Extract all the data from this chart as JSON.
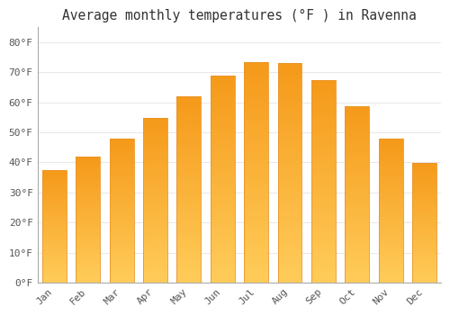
{
  "months": [
    "Jan",
    "Feb",
    "Mar",
    "Apr",
    "May",
    "Jun",
    "Jul",
    "Aug",
    "Sep",
    "Oct",
    "Nov",
    "Dec"
  ],
  "values": [
    37.4,
    41.9,
    47.8,
    54.9,
    62.1,
    68.9,
    73.2,
    72.9,
    67.3,
    58.8,
    47.8,
    39.7
  ],
  "bar_color": "#F5A623",
  "bar_edge_color": "#E8952A",
  "background_color": "#ffffff",
  "plot_bg_color": "#ffffff",
  "grid_color": "#e8e8e8",
  "title": "Average monthly temperatures (°F ) in Ravenna",
  "title_fontsize": 10.5,
  "tick_label_fontsize": 8,
  "yticks": [
    0,
    10,
    20,
    30,
    40,
    50,
    60,
    70,
    80
  ],
  "ylim": [
    0,
    85
  ],
  "text_color": "#555555",
  "bar_width": 0.72,
  "title_color": "#333333"
}
